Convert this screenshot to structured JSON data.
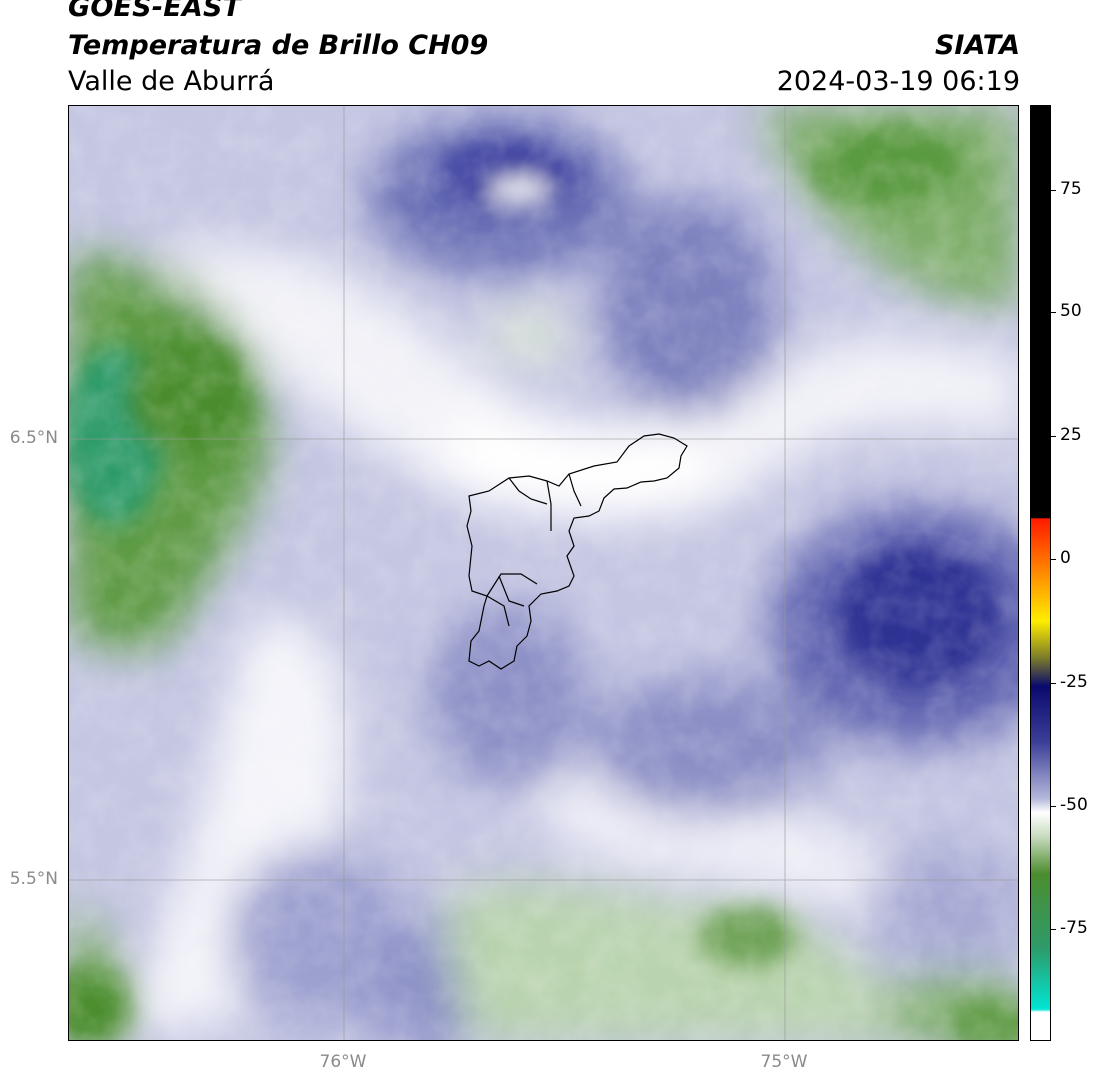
{
  "header": {
    "product": "GOES-EAST",
    "channel": "Temperatura de Brillo CH09",
    "region": "Valle de Aburrá",
    "agency": "SIATA",
    "datetime": "2024-03-19 06:19"
  },
  "map": {
    "lat_labels": [
      "6.5°N",
      "5.5°N"
    ],
    "lon_labels": [
      "76°W",
      "75°W"
    ],
    "gridlines": true,
    "boundary": "Valle de Aburrá municipalities"
  },
  "colorbar": {
    "ticks": [
      "75",
      "50",
      "25",
      "0",
      "-25",
      "-50",
      "-75"
    ],
    "tick_values": [
      75,
      50,
      25,
      0,
      -25,
      -50,
      -75
    ],
    "range": [
      -94,
      92
    ],
    "colors": {
      "hot": "#000000",
      "warm_top": "#ff1a00",
      "orange": "#ff8c00",
      "yellow": "#ffee00",
      "olive": "#7a7a2a",
      "navy": "#0a0a6e",
      "indigo": "#3c3f98",
      "lavender": "#b5b8db",
      "white": "#ffffff",
      "light_green": "#c9dcc0",
      "green": "#4c8d2f",
      "teal": "#2e9b6a",
      "cyan": "#00e5d4"
    }
  }
}
